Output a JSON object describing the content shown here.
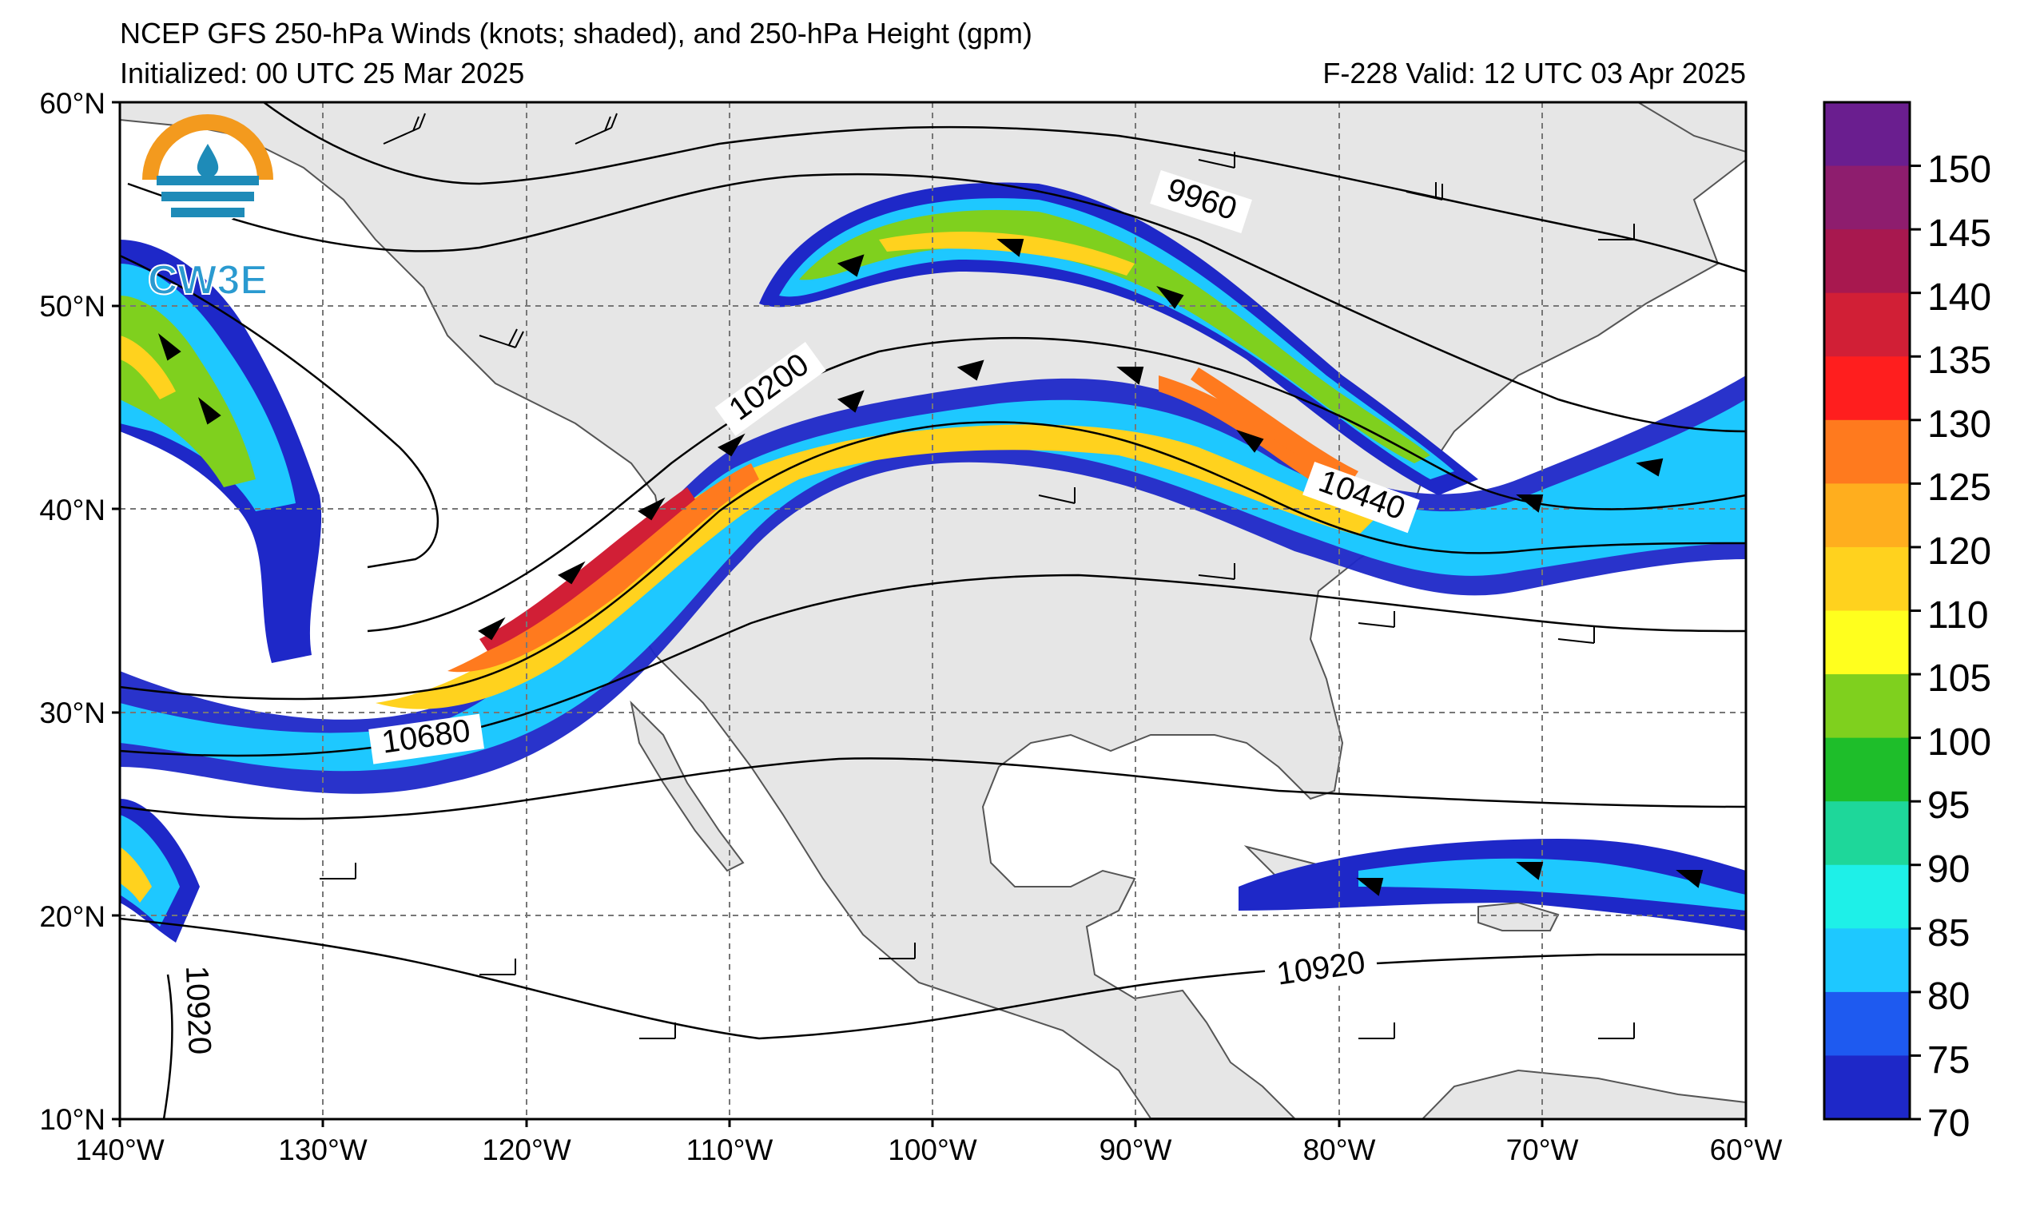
{
  "header": {
    "title": "NCEP GFS 250-hPa Winds (knots; shaded), and 250-hPa Height (gpm)",
    "init": "Initialized: 00 UTC 25 Mar 2025",
    "valid": "F-228  Valid: 12 UTC 03 Apr 2025"
  },
  "logo": {
    "text": "CW3E",
    "icon": "cw3e-logo-icon"
  },
  "map": {
    "lon_range": [
      -140,
      -60
    ],
    "lat_range": [
      10,
      60
    ],
    "lat_ticks": [
      "60°N",
      "50°N",
      "40°N",
      "30°N",
      "20°N",
      "10°N"
    ],
    "lon_ticks": [
      "140°W",
      "130°W",
      "120°W",
      "110°W",
      "100°W",
      "90°W",
      "80°W",
      "70°W",
      "60°W"
    ],
    "contour_labels": [
      "9960",
      "10200",
      "10440",
      "10680",
      "10920",
      "10920"
    ],
    "gridlines": "dashed",
    "land_color": "#e6e6e6"
  },
  "colorbar": {
    "ticks": [
      "150",
      "145",
      "140",
      "135",
      "130",
      "125",
      "120",
      "110",
      "105",
      "100",
      "95",
      "90",
      "85",
      "80",
      "75",
      "70"
    ],
    "colors": [
      "#6a1e8f",
      "#8e1d6e",
      "#a8184f",
      "#d11f36",
      "#ff1e1e",
      "#ff7a1e",
      "#ffae1e",
      "#ffd21e",
      "#ffff1e",
      "#7fd01e",
      "#1ebe2a",
      "#1ed79a",
      "#1ef0e8",
      "#1ec8ff",
      "#1e5af0",
      "#1e28c8"
    ]
  }
}
